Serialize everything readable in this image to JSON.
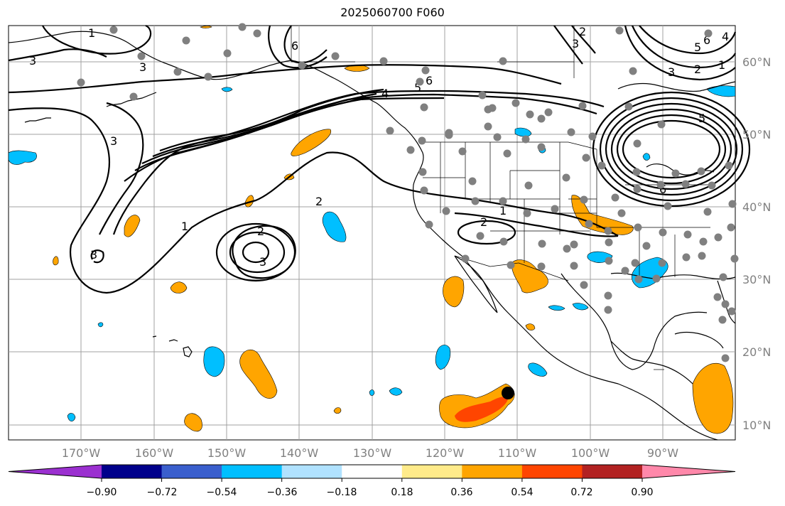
{
  "title": "2025060700 F060",
  "lat_labels": [
    "60°N",
    "50°N",
    "40°N",
    "30°N",
    "20°N",
    "10°N"
  ],
  "lon_labels": [
    "170°W",
    "160°W",
    "150°W",
    "140°W",
    "130°W",
    "120°W",
    "110°W",
    "100°W",
    "90°W"
  ],
  "colorbar": {
    "ticks": [
      "−0.90",
      "−0.72",
      "−0.54",
      "−0.36",
      "−0.18",
      "0.18",
      "0.36",
      "0.54",
      "0.72",
      "0.90"
    ],
    "colors": [
      "#9b30d0",
      "#00008b",
      "#3a5fcd",
      "#00bfff",
      "#b0e2ff",
      "#ffffff",
      "#ffeb8a",
      "#ffa500",
      "#ff4500",
      "#b22222",
      "#ff88aa"
    ]
  },
  "contour_labels": [
    "1",
    "2",
    "3",
    "4",
    "5",
    "6"
  ],
  "colors": {
    "land_border": "#000000",
    "grid": "#a0a0a0",
    "station": "#808080",
    "storm": "#000000"
  }
}
